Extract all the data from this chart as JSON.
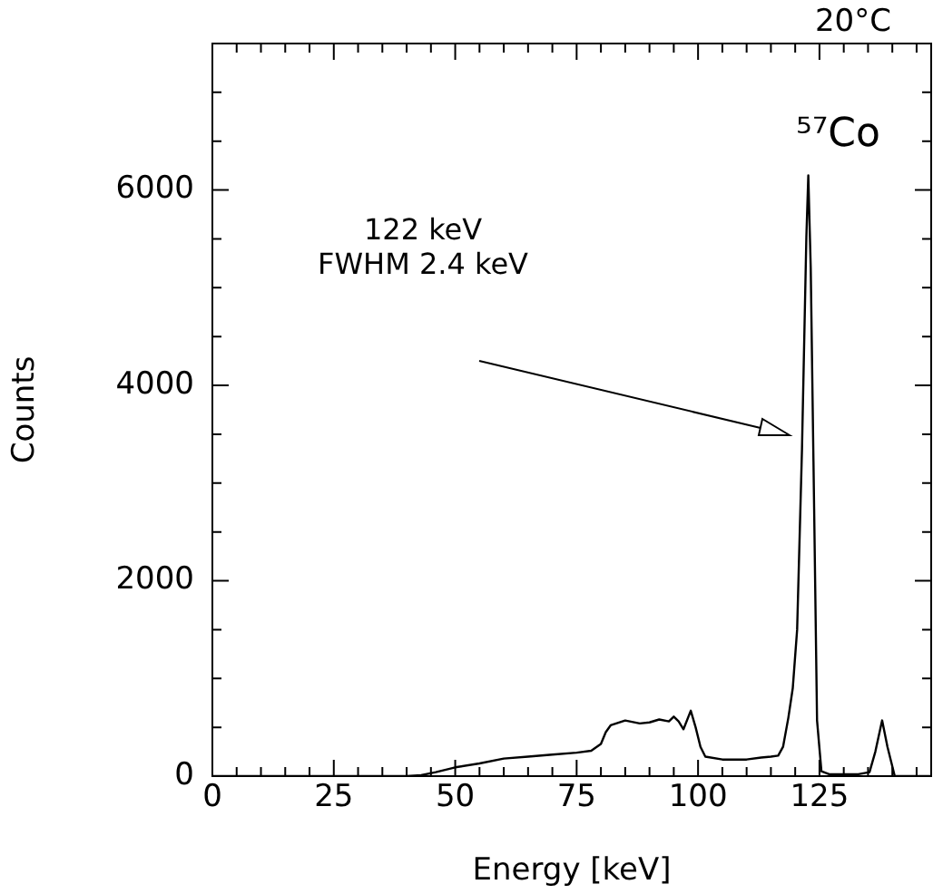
{
  "chart_data": {
    "type": "line",
    "title": "20°C",
    "xlabel": "Energy [keV]",
    "ylabel": "Counts",
    "annotations": [
      "⁵⁷Co",
      "122 keV\nFWHM 2.4 keV"
    ],
    "x": [
      0,
      40,
      43,
      46,
      50,
      55,
      60,
      65,
      70,
      75,
      78,
      80,
      81,
      82,
      85,
      88,
      90,
      92,
      94,
      95,
      96,
      97,
      98.5,
      99.5,
      100.5,
      101.5,
      105,
      110,
      113,
      115,
      116.5,
      117.5,
      118.6,
      119.5,
      120.4,
      121.4,
      122.3,
      122.7,
      123.2,
      123.9,
      124.5,
      125.4,
      127,
      133,
      135.3,
      136.5,
      137.9,
      139,
      140.5,
      148
    ],
    "series": [
      {
        "color": "#000000",
        "values": [
          0,
          0,
          10,
          40,
          90,
          130,
          180,
          200,
          220,
          240,
          260,
          330,
          450,
          520,
          570,
          540,
          550,
          580,
          560,
          610,
          560,
          480,
          670,
          500,
          300,
          200,
          170,
          170,
          190,
          200,
          210,
          300,
          600,
          900,
          1500,
          3350,
          5520,
          6150,
          5200,
          2740,
          570,
          50,
          20,
          20,
          40,
          250,
          570,
          300,
          0,
          0
        ]
      }
    ],
    "xlim": [
      0,
      148
    ],
    "xticks": [
      0,
      {
        "value": 5,
        "label": null
      },
      {
        "value": 10,
        "label": null
      },
      {
        "value": 15,
        "label": null
      },
      {
        "value": 20,
        "label": null
      },
      25,
      {
        "value": 30,
        "label": null
      },
      {
        "value": 35,
        "label": null
      },
      {
        "value": 40,
        "label": null
      },
      {
        "value": 45,
        "label": null
      },
      50,
      {
        "value": 55,
        "label": null
      },
      {
        "value": 60,
        "label": null
      },
      {
        "value": 65,
        "label": null
      },
      {
        "value": 70,
        "label": null
      },
      75,
      {
        "value": 80,
        "label": null
      },
      {
        "value": 85,
        "label": null
      },
      {
        "value": 90,
        "label": null
      },
      {
        "value": 95,
        "label": null
      },
      100,
      {
        "value": 105,
        "label": null
      },
      {
        "value": 110,
        "label": null
      },
      {
        "value": 115,
        "label": null
      },
      {
        "value": 120,
        "label": null
      },
      125,
      {
        "value": 130,
        "label": null
      },
      {
        "value": 135,
        "label": null
      },
      {
        "value": 140,
        "label": null
      },
      {
        "value": 145,
        "label": null
      }
    ],
    "ylim": [
      0,
      7500
    ],
    "yticks": [
      0,
      {
        "value": 500,
        "label": null
      },
      {
        "value": 1000,
        "label": null
      },
      {
        "value": 1500,
        "label": null
      },
      2000,
      {
        "value": 2500,
        "label": null
      },
      {
        "value": 3000,
        "label": null
      },
      {
        "value": 3500,
        "label": null
      },
      4000,
      {
        "value": 4500,
        "label": null
      },
      {
        "value": 5000,
        "label": null
      },
      {
        "value": 5500,
        "label": null
      },
      6000,
      {
        "value": 6500,
        "label": null
      },
      {
        "value": 7000,
        "label": null
      },
      {
        "value": 7500,
        "label": null
      }
    ],
    "grid": false,
    "legend": false,
    "marker": "none",
    "line_style": "solid"
  }
}
